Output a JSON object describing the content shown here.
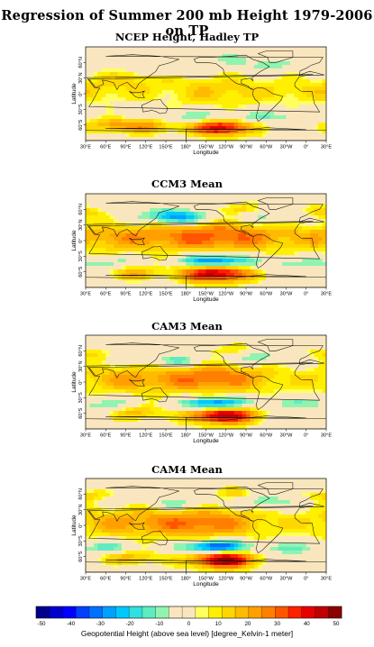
{
  "title": "Regression of Summer 200 mb Height 1979-2006 on TP",
  "axes": {
    "x_label": "Longitude",
    "y_label": "Latitude",
    "lon_ticks": [
      "30°E",
      "60°E",
      "90°E",
      "120°E",
      "150°E",
      "180°",
      "150°W",
      "120°W",
      "90°W",
      "60°W",
      "30°W",
      "0°",
      "30°E"
    ],
    "lat_ticks": [
      "60°N",
      "30°N",
      "0°",
      "30°S",
      "60°S"
    ]
  },
  "panels": [
    {
      "name": "NCEP Height, Hadley TP",
      "features": [
        {
          "lon": 225,
          "lat": 5,
          "amp": 14,
          "rx": 65,
          "ry": 22
        },
        {
          "lon": 30,
          "lat": 5,
          "amp": 12,
          "rx": 60,
          "ry": 18
        },
        {
          "lon": 100,
          "lat": 30,
          "amp": 9,
          "rx": 40,
          "ry": 12
        },
        {
          "lon": 235,
          "lat": -65,
          "amp": 42,
          "rx": 32,
          "ry": 12
        },
        {
          "lon": 120,
          "lat": -60,
          "amp": 22,
          "rx": 35,
          "ry": 12
        },
        {
          "lon": 60,
          "lat": -60,
          "amp": 16,
          "rx": 25,
          "ry": 10
        },
        {
          "lon": 180,
          "lat": -45,
          "amp": -13,
          "rx": 60,
          "ry": 8
        },
        {
          "lon": 300,
          "lat": -45,
          "amp": -10,
          "rx": 50,
          "ry": 8
        },
        {
          "lon": 165,
          "lat": 45,
          "amp": -10,
          "rx": 25,
          "ry": 8
        },
        {
          "lon": 305,
          "lat": 55,
          "amp": -10,
          "rx": 25,
          "ry": 8
        },
        {
          "lon": 240,
          "lat": 65,
          "amp": -7,
          "rx": 35,
          "ry": 8
        }
      ]
    },
    {
      "name": "CCM3 Mean",
      "features": [
        {
          "lon": 225,
          "lat": 8,
          "amp": 30,
          "rx": 80,
          "ry": 22
        },
        {
          "lon": 60,
          "lat": 5,
          "amp": 17,
          "rx": 60,
          "ry": 20
        },
        {
          "lon": 225,
          "lat": -63,
          "amp": 46,
          "rx": 38,
          "ry": 13
        },
        {
          "lon": 105,
          "lat": -62,
          "amp": 18,
          "rx": 28,
          "ry": 10
        },
        {
          "lon": 225,
          "lat": -40,
          "amp": -40,
          "rx": 35,
          "ry": 9
        },
        {
          "lon": 60,
          "lat": -42,
          "amp": -12,
          "rx": 30,
          "ry": 8
        },
        {
          "lon": 330,
          "lat": -45,
          "amp": -10,
          "rx": 30,
          "ry": 8
        },
        {
          "lon": 165,
          "lat": 45,
          "amp": -32,
          "rx": 35,
          "ry": 10
        },
        {
          "lon": 300,
          "lat": 45,
          "amp": -12,
          "rx": 30,
          "ry": 10
        },
        {
          "lon": 30,
          "lat": 55,
          "amp": 14,
          "rx": 22,
          "ry": 8
        },
        {
          "lon": 255,
          "lat": 60,
          "amp": 12,
          "rx": 25,
          "ry": 8
        }
      ]
    },
    {
      "name": "CAM3 Mean",
      "features": [
        {
          "lon": 220,
          "lat": 8,
          "amp": 28,
          "rx": 70,
          "ry": 22
        },
        {
          "lon": 75,
          "lat": 5,
          "amp": 16,
          "rx": 55,
          "ry": 20
        },
        {
          "lon": 235,
          "lat": -63,
          "amp": 48,
          "rx": 36,
          "ry": 13
        },
        {
          "lon": 110,
          "lat": -60,
          "amp": 17,
          "rx": 28,
          "ry": 10
        },
        {
          "lon": 225,
          "lat": -42,
          "amp": -42,
          "rx": 32,
          "ry": 9
        },
        {
          "lon": 55,
          "lat": -42,
          "amp": -12,
          "rx": 30,
          "ry": 8
        },
        {
          "lon": 330,
          "lat": -40,
          "amp": -10,
          "rx": 30,
          "ry": 8
        },
        {
          "lon": 165,
          "lat": 40,
          "amp": -18,
          "rx": 30,
          "ry": 10
        },
        {
          "lon": 285,
          "lat": 45,
          "amp": -14,
          "rx": 30,
          "ry": 10
        },
        {
          "lon": 35,
          "lat": 55,
          "amp": 12,
          "rx": 22,
          "ry": 8
        },
        {
          "lon": 240,
          "lat": 62,
          "amp": 10,
          "rx": 25,
          "ry": 8
        }
      ]
    },
    {
      "name": "CAM4 Mean",
      "features": [
        {
          "lon": 200,
          "lat": 5,
          "amp": 28,
          "rx": 75,
          "ry": 22
        },
        {
          "lon": 55,
          "lat": 5,
          "amp": 14,
          "rx": 55,
          "ry": 20
        },
        {
          "lon": 235,
          "lat": -65,
          "amp": 48,
          "rx": 36,
          "ry": 13
        },
        {
          "lon": 100,
          "lat": -62,
          "amp": 18,
          "rx": 30,
          "ry": 10
        },
        {
          "lon": 225,
          "lat": -42,
          "amp": -45,
          "rx": 34,
          "ry": 9
        },
        {
          "lon": 60,
          "lat": -42,
          "amp": -14,
          "rx": 30,
          "ry": 8
        },
        {
          "lon": 330,
          "lat": -45,
          "amp": -12,
          "rx": 30,
          "ry": 8
        },
        {
          "lon": 165,
          "lat": 42,
          "amp": -14,
          "rx": 30,
          "ry": 10
        },
        {
          "lon": 295,
          "lat": 45,
          "amp": -14,
          "rx": 30,
          "ry": 10
        },
        {
          "lon": 30,
          "lat": 58,
          "amp": 14,
          "rx": 22,
          "ry": 8
        },
        {
          "lon": 255,
          "lat": 60,
          "amp": 12,
          "rx": 25,
          "ry": 8
        }
      ]
    }
  ],
  "colorbar": {
    "title": "Geopotential Height (above sea level) [degree_Kelvin-1 meter]",
    "min": -50,
    "max": 50,
    "labels": [
      "-50",
      "-40",
      "-30",
      "-20",
      "-10",
      "0",
      "10",
      "20",
      "30",
      "40",
      "50"
    ],
    "colors": [
      "#00008b",
      "#0000cd",
      "#0000ff",
      "#0040ff",
      "#0070ff",
      "#00a0ff",
      "#00c8ff",
      "#30e0e0",
      "#60ecc0",
      "#90f4b0",
      "#fae6be",
      "#fae6be",
      "#ffff60",
      "#ffef00",
      "#ffd700",
      "#ffbb00",
      "#ffa000",
      "#ff7f00",
      "#ff5500",
      "#ff2000",
      "#e60000",
      "#c00000",
      "#8b0000"
    ]
  }
}
